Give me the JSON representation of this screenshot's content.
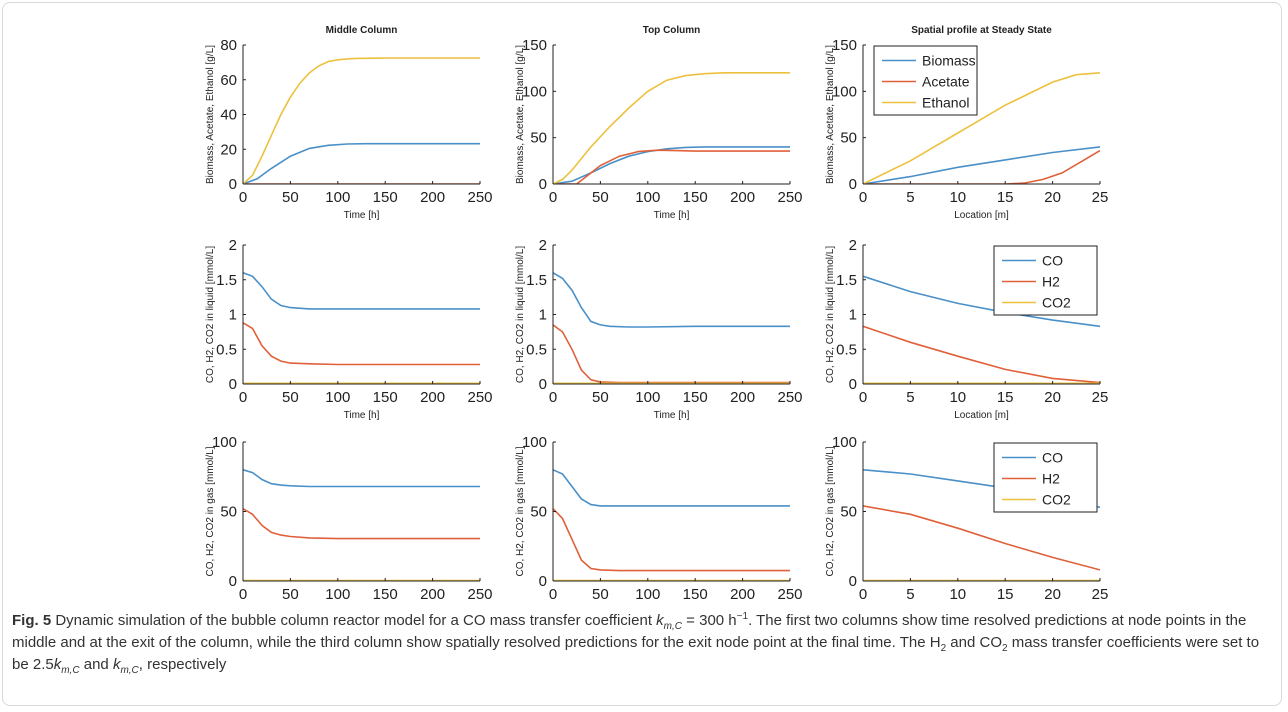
{
  "caption": {
    "fig_label": "Fig. 5",
    "seg1": " Dynamic simulation of the bubble column reactor model for a CO mass transfer coefficient ",
    "k_sym": "k",
    "k_sub_mc": "m,C",
    "seg2": " = 300 h",
    "h_exp": "−1",
    "seg3": ". The first two columns show time resolved predictions at node points in the middle and at the exit of the column, while the third column show spatially resolved predictions for the exit node point at the final time. The H",
    "sub2a": "2",
    "seg4": " and CO",
    "sub2b": "2",
    "seg5": " mass transfer coefficients were set to be 2.5",
    "k_sub_mc2": "m,C",
    "seg6": " and ",
    "k_sub_mc3": "m,C",
    "seg7": ", respectively"
  },
  "colors": {
    "blue": "#4a90c8",
    "red": "#e0603a",
    "yellow": "#ecc13e"
  },
  "chart_data": [
    {
      "type": "line",
      "title": "Middle Column",
      "xlabel": "Time [h]",
      "ylabel": "Biomass, Acetate, Ethanol [g/L]",
      "xlim": [
        0,
        250
      ],
      "ylim": [
        0,
        80
      ],
      "xticks": [
        0,
        50,
        100,
        150,
        200,
        250
      ],
      "yticks": [
        0,
        20,
        40,
        60,
        80
      ],
      "series": [
        {
          "color": "blue",
          "x": [
            0,
            15,
            30,
            50,
            70,
            90,
            110,
            130,
            150,
            200,
            250
          ],
          "y": [
            0,
            3,
            9,
            16,
            20.5,
            22.3,
            23,
            23.2,
            23.2,
            23.2,
            23.2
          ]
        },
        {
          "color": "red",
          "x": [
            0,
            250
          ],
          "y": [
            0,
            0
          ]
        },
        {
          "color": "yellow",
          "x": [
            0,
            10,
            20,
            30,
            40,
            50,
            60,
            70,
            80,
            90,
            100,
            110,
            120,
            150,
            200,
            250
          ],
          "y": [
            0,
            5,
            16,
            28,
            40,
            50,
            58,
            64,
            68,
            70.5,
            71.5,
            72,
            72.3,
            72.5,
            72.5,
            72.5
          ]
        }
      ]
    },
    {
      "type": "line",
      "title": "Top Column",
      "xlabel": "Time [h]",
      "ylabel": "Biomass, Acetate, Ethanol [g/L]",
      "xlim": [
        0,
        250
      ],
      "ylim": [
        0,
        150
      ],
      "xticks": [
        0,
        50,
        100,
        150,
        200,
        250
      ],
      "yticks": [
        0,
        50,
        100,
        150
      ],
      "series": [
        {
          "color": "blue",
          "x": [
            0,
            20,
            40,
            60,
            80,
            100,
            120,
            140,
            160,
            200,
            250
          ],
          "y": [
            0,
            3,
            12,
            22,
            30,
            35,
            38,
            39.5,
            40,
            40,
            40
          ]
        },
        {
          "color": "red",
          "x": [
            0,
            25,
            35,
            50,
            70,
            90,
            110,
            130,
            150,
            200,
            250
          ],
          "y": [
            0,
            0,
            8,
            20,
            30,
            35,
            36.5,
            36,
            35.5,
            35.5,
            35.5
          ]
        },
        {
          "color": "yellow",
          "x": [
            0,
            10,
            20,
            40,
            60,
            80,
            100,
            120,
            140,
            160,
            180,
            200,
            250
          ],
          "y": [
            0,
            5,
            15,
            40,
            62,
            82,
            100,
            112,
            117,
            119,
            120,
            120,
            120
          ]
        }
      ]
    },
    {
      "type": "line",
      "title": "Spatial profile at Steady State",
      "xlabel": "Location [m]",
      "ylabel": "Biomass, Acetate, Ethanol [g/L]",
      "xlim": [
        0,
        25
      ],
      "ylim": [
        0,
        150
      ],
      "xticks": [
        0,
        5,
        10,
        15,
        20,
        25
      ],
      "yticks": [
        0,
        50,
        100,
        150
      ],
      "legend_position": "top-left",
      "series": [
        {
          "name": "Biomass",
          "color": "blue",
          "x": [
            0,
            5,
            10,
            15,
            20,
            25
          ],
          "y": [
            0,
            8,
            18,
            26,
            34,
            40
          ]
        },
        {
          "name": "Acetate",
          "color": "red",
          "x": [
            0,
            15,
            17,
            19,
            21,
            23,
            25
          ],
          "y": [
            0,
            0,
            1,
            5,
            12,
            24,
            36
          ]
        },
        {
          "name": "Ethanol",
          "color": "yellow",
          "x": [
            0,
            5,
            10,
            15,
            20,
            22.5,
            25
          ],
          "y": [
            0,
            25,
            55,
            85,
            110,
            118,
            120
          ]
        }
      ]
    },
    {
      "type": "line",
      "xlabel": "Time [h]",
      "ylabel": "CO, H2, CO2 in liquid [mmol/L]",
      "xlim": [
        0,
        250
      ],
      "ylim": [
        0,
        2
      ],
      "xticks": [
        0,
        50,
        100,
        150,
        200,
        250
      ],
      "yticks": [
        0,
        0.5,
        1,
        1.5,
        2
      ],
      "series": [
        {
          "color": "blue",
          "x": [
            0,
            10,
            20,
            30,
            40,
            50,
            70,
            100,
            150,
            200,
            250
          ],
          "y": [
            1.6,
            1.55,
            1.4,
            1.22,
            1.13,
            1.1,
            1.08,
            1.08,
            1.08,
            1.08,
            1.08
          ]
        },
        {
          "color": "red",
          "x": [
            0,
            10,
            20,
            30,
            40,
            50,
            70,
            100,
            150,
            250
          ],
          "y": [
            0.88,
            0.8,
            0.55,
            0.4,
            0.33,
            0.3,
            0.29,
            0.28,
            0.28,
            0.28
          ]
        },
        {
          "color": "yellow",
          "x": [
            0,
            250
          ],
          "y": [
            0.01,
            0.01
          ]
        }
      ]
    },
    {
      "type": "line",
      "xlabel": "Time [h]",
      "ylabel": "CO, H2, CO2 in liquid [mmol/L]",
      "xlim": [
        0,
        250
      ],
      "ylim": [
        0,
        2
      ],
      "xticks": [
        0,
        50,
        100,
        150,
        200,
        250
      ],
      "yticks": [
        0,
        0.5,
        1,
        1.5,
        2
      ],
      "series": [
        {
          "color": "blue",
          "x": [
            0,
            10,
            20,
            30,
            40,
            50,
            60,
            80,
            100,
            150,
            200,
            250
          ],
          "y": [
            1.6,
            1.52,
            1.35,
            1.1,
            0.9,
            0.85,
            0.83,
            0.82,
            0.82,
            0.83,
            0.83,
            0.83
          ]
        },
        {
          "color": "red",
          "x": [
            0,
            10,
            20,
            30,
            40,
            50,
            70,
            100,
            250
          ],
          "y": [
            0.85,
            0.75,
            0.5,
            0.2,
            0.06,
            0.03,
            0.02,
            0.02,
            0.02
          ]
        },
        {
          "color": "yellow",
          "x": [
            0,
            250
          ],
          "y": [
            0.01,
            0.01
          ]
        }
      ]
    },
    {
      "type": "line",
      "xlabel": "Location [m]",
      "ylabel": "CO, H2, CO2 in liquid [mmol/L]",
      "xlim": [
        0,
        25
      ],
      "ylim": [
        0,
        2
      ],
      "xticks": [
        0,
        5,
        10,
        15,
        20,
        25
      ],
      "yticks": [
        0,
        0.5,
        1,
        1.5,
        2
      ],
      "legend_position": "top-right",
      "series": [
        {
          "name": "CO",
          "color": "blue",
          "x": [
            0,
            5,
            10,
            15,
            20,
            25
          ],
          "y": [
            1.55,
            1.33,
            1.16,
            1.03,
            0.92,
            0.83
          ]
        },
        {
          "name": "H2",
          "color": "red",
          "x": [
            0,
            5,
            10,
            15,
            20,
            25
          ],
          "y": [
            0.83,
            0.6,
            0.4,
            0.21,
            0.08,
            0.02
          ]
        },
        {
          "name": "CO2",
          "color": "yellow",
          "x": [
            0,
            25
          ],
          "y": [
            0.01,
            0.01
          ]
        }
      ]
    },
    {
      "type": "line",
      "xlabel": "Time [h]",
      "ylabel": "CO, H2, CO2 in gas [mmol/L]",
      "xlim": [
        0,
        250
      ],
      "ylim": [
        0,
        100
      ],
      "xticks": [
        0,
        50,
        100,
        150,
        200,
        250
      ],
      "yticks": [
        0,
        50,
        100
      ],
      "series": [
        {
          "color": "blue",
          "x": [
            0,
            10,
            20,
            30,
            40,
            50,
            70,
            100,
            150,
            250
          ],
          "y": [
            80,
            78,
            73,
            70,
            69,
            68.5,
            68,
            68,
            68,
            68
          ]
        },
        {
          "color": "red",
          "x": [
            0,
            10,
            20,
            30,
            40,
            50,
            70,
            100,
            150,
            250
          ],
          "y": [
            52,
            48,
            40,
            35,
            33,
            32,
            31,
            30.5,
            30.5,
            30.5
          ]
        },
        {
          "color": "yellow",
          "x": [
            0,
            250
          ],
          "y": [
            0.3,
            0.3
          ]
        }
      ]
    },
    {
      "type": "line",
      "xlabel": "Time [h]",
      "ylabel": "CO, H2, CO2 in gas [mmol/L]",
      "xlim": [
        0,
        250
      ],
      "ylim": [
        0,
        100
      ],
      "xticks": [
        0,
        50,
        100,
        150,
        200,
        250
      ],
      "yticks": [
        0,
        50,
        100
      ],
      "series": [
        {
          "color": "blue",
          "x": [
            0,
            10,
            20,
            30,
            40,
            50,
            70,
            100,
            250
          ],
          "y": [
            80,
            77,
            68,
            59,
            55,
            54,
            54,
            54,
            54
          ]
        },
        {
          "color": "red",
          "x": [
            0,
            10,
            20,
            30,
            40,
            50,
            70,
            100,
            250
          ],
          "y": [
            52,
            45,
            30,
            15,
            9,
            8,
            7.5,
            7.5,
            7.5
          ]
        },
        {
          "color": "yellow",
          "x": [
            0,
            250
          ],
          "y": [
            0.3,
            0.3
          ]
        }
      ]
    },
    {
      "type": "line",
      "xlabel": "Location [m]",
      "ylabel": "CO, H2, CO2 in gas [mmol/L]",
      "xlim": [
        0,
        25
      ],
      "ylim": [
        0,
        100
      ],
      "xticks": [
        0,
        5,
        10,
        15,
        20,
        25
      ],
      "yticks": [
        0,
        50,
        100
      ],
      "legend_position": "top-right",
      "series": [
        {
          "name": "CO",
          "color": "blue",
          "x": [
            0,
            5,
            10,
            15,
            20,
            25
          ],
          "y": [
            80,
            77,
            72,
            67,
            60,
            53
          ]
        },
        {
          "name": "H2",
          "color": "red",
          "x": [
            0,
            5,
            10,
            15,
            20,
            25
          ],
          "y": [
            54,
            48,
            38,
            27,
            17,
            8
          ]
        },
        {
          "name": "CO2",
          "color": "yellow",
          "x": [
            0,
            25
          ],
          "y": [
            0.3,
            0.3
          ]
        }
      ]
    }
  ]
}
